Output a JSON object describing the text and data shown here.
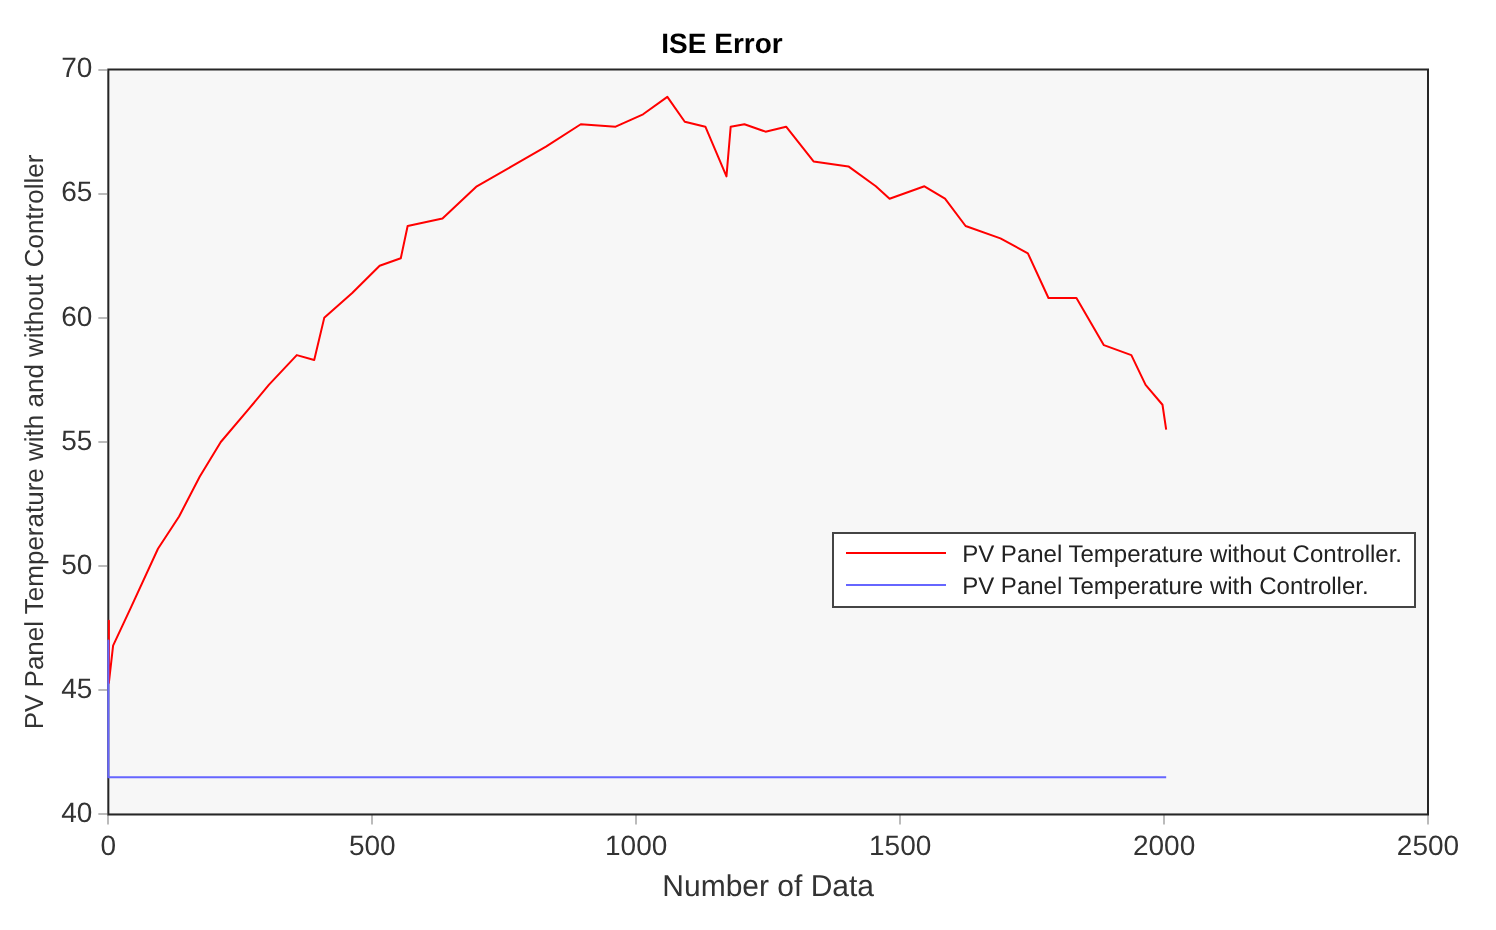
{
  "chart_data": {
    "type": "line",
    "title": "ISE Error",
    "xlabel": "Number of Data",
    "ylabel": "PV Panel Temperature with and without Controller",
    "xlim": [
      0,
      2500
    ],
    "xticks": [
      0,
      500,
      1000,
      1500,
      2000,
      2500
    ],
    "ylim": [
      40,
      70
    ],
    "yticks": [
      40,
      45,
      50,
      55,
      60,
      65,
      70
    ],
    "grid": false,
    "legend": "right",
    "marker": "none",
    "line_style": "solid",
    "series": [
      {
        "name": "PV Panel Temperature without Controller.",
        "color": "#ff0000",
        "x": [
          0,
          0,
          2,
          9,
          42,
          94,
          134,
          173,
          213,
          265,
          304,
          357,
          390,
          409,
          462,
          514,
          554,
          567,
          633,
          698,
          764,
          829,
          895,
          961,
          1013,
          1059,
          1092,
          1131,
          1171,
          1179,
          1205,
          1245,
          1284,
          1336,
          1402,
          1454,
          1480,
          1546,
          1585,
          1624,
          1690,
          1742,
          1781,
          1834,
          1886,
          1938,
          1965,
          1997,
          2004
        ],
        "values": [
          45.3,
          47.8,
          45.3,
          46.8,
          48.3,
          50.7,
          52.0,
          53.6,
          55.0,
          56.3,
          57.3,
          58.5,
          58.3,
          60.0,
          61.0,
          62.1,
          62.4,
          63.7,
          64.0,
          65.3,
          66.1,
          66.9,
          67.8,
          67.7,
          68.2,
          68.9,
          67.9,
          67.7,
          65.7,
          67.7,
          67.8,
          67.5,
          67.7,
          66.3,
          66.1,
          65.3,
          64.8,
          65.3,
          64.8,
          63.7,
          63.2,
          62.6,
          60.8,
          60.8,
          58.9,
          58.5,
          57.3,
          56.5,
          55.5
        ]
      },
      {
        "name": "PV Panel Temperature with Controller.",
        "color": "#6666ff",
        "x": [
          0,
          0,
          2004
        ],
        "values": [
          47.0,
          41.5,
          41.5
        ]
      }
    ]
  }
}
